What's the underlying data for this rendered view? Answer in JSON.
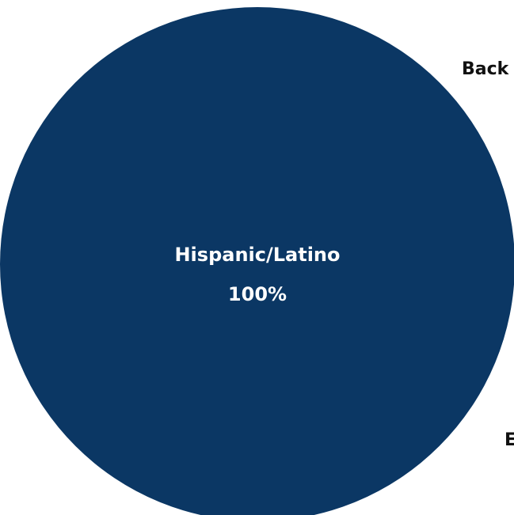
{
  "chart_data": {
    "type": "pie",
    "slices": [
      {
        "label": "Hispanic/Latino",
        "value": 100,
        "display": "100%",
        "color": "#0b3764"
      }
    ],
    "cut_off_labels": [
      {
        "text": "Back"
      },
      {
        "text": "E"
      }
    ]
  }
}
